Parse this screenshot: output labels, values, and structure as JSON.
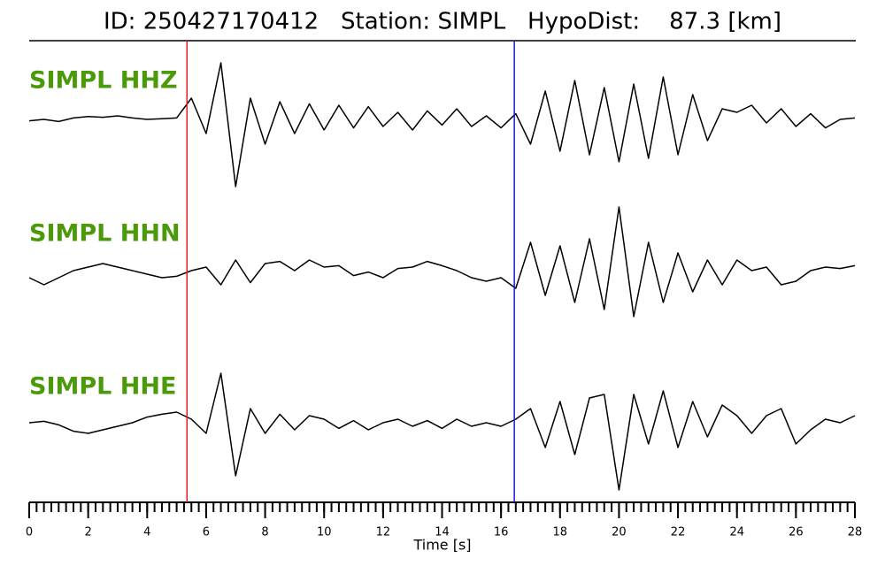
{
  "chart_data": {
    "type": "seismogram",
    "title": "ID: 250427170412   Station: SIMPL   HypoDist:    87.3 [km]",
    "x_label": "Time [s]",
    "xlim": [
      0,
      28
    ],
    "xticks": [
      0,
      2,
      4,
      6,
      8,
      10,
      12,
      14,
      16,
      18,
      20,
      22,
      24,
      26,
      28
    ],
    "minor_tick_step": 0.25,
    "label_color": "#4a9a0a",
    "x": [
      0,
      0.5,
      1,
      1.5,
      2,
      2.5,
      3,
      3.5,
      4,
      4.5,
      5,
      5.5,
      6,
      6.5,
      7,
      7.5,
      8,
      8.5,
      9,
      9.5,
      10,
      10.5,
      11,
      11.5,
      12,
      12.5,
      13,
      13.5,
      14,
      14.5,
      15,
      15.5,
      16,
      16.5,
      17,
      17.5,
      18,
      18.5,
      19,
      19.5,
      20,
      20.5,
      21,
      21.5,
      22,
      22.5,
      23,
      23.5,
      24,
      24.5,
      25,
      25.5,
      26,
      26.5,
      27,
      27.5,
      28
    ],
    "series": [
      {
        "name": "SIMPL HHZ",
        "color": "#000000",
        "values": [
          -0.02,
          0.0,
          -0.03,
          0.02,
          0.04,
          0.03,
          0.05,
          0.02,
          0.0,
          0.01,
          0.02,
          0.3,
          -0.2,
          0.8,
          -0.95,
          0.3,
          -0.35,
          0.25,
          -0.2,
          0.22,
          -0.15,
          0.2,
          -0.12,
          0.18,
          -0.1,
          0.1,
          -0.15,
          0.12,
          -0.08,
          0.15,
          -0.1,
          0.05,
          -0.12,
          0.08,
          -0.35,
          0.4,
          -0.45,
          0.55,
          -0.5,
          0.45,
          -0.6,
          0.5,
          -0.55,
          0.6,
          -0.5,
          0.35,
          -0.3,
          0.15,
          0.1,
          0.2,
          -0.05,
          0.15,
          -0.1,
          0.08,
          -0.12,
          0.0,
          0.02
        ]
      },
      {
        "name": "SIMPL HHN",
        "color": "#000000",
        "values": [
          -0.05,
          -0.15,
          -0.05,
          0.05,
          0.1,
          0.15,
          0.1,
          0.05,
          0.0,
          -0.05,
          -0.03,
          0.05,
          0.1,
          -0.15,
          0.2,
          -0.12,
          0.15,
          0.18,
          0.05,
          0.2,
          0.1,
          0.12,
          -0.02,
          0.03,
          -0.05,
          0.08,
          0.1,
          0.18,
          0.12,
          0.05,
          -0.05,
          -0.1,
          -0.05,
          -0.2,
          0.45,
          -0.3,
          0.4,
          -0.4,
          0.5,
          -0.5,
          0.95,
          -0.6,
          0.45,
          -0.4,
          0.3,
          -0.25,
          0.2,
          -0.15,
          0.2,
          0.05,
          0.1,
          -0.15,
          -0.1,
          0.05,
          0.1,
          0.08,
          0.12
        ]
      },
      {
        "name": "SIMPL HHE",
        "color": "#000000",
        "values": [
          0.0,
          0.02,
          -0.03,
          -0.12,
          -0.15,
          -0.1,
          -0.05,
          0.0,
          0.08,
          0.12,
          0.15,
          0.05,
          -0.15,
          0.7,
          -0.75,
          0.2,
          -0.15,
          0.12,
          -0.1,
          0.1,
          0.05,
          -0.08,
          0.03,
          -0.1,
          0.0,
          0.05,
          -0.05,
          0.03,
          -0.08,
          0.05,
          -0.05,
          0.0,
          -0.05,
          0.05,
          0.2,
          -0.35,
          0.3,
          -0.45,
          0.35,
          0.4,
          -0.95,
          0.4,
          -0.3,
          0.45,
          -0.35,
          0.3,
          -0.2,
          0.25,
          0.1,
          -0.15,
          0.1,
          0.2,
          -0.3,
          -0.1,
          0.05,
          0.0,
          0.1
        ]
      }
    ],
    "markers": [
      {
        "x": 5.35,
        "color": "#e02020"
      },
      {
        "x": 16.45,
        "color": "#1a1ae0"
      }
    ]
  }
}
